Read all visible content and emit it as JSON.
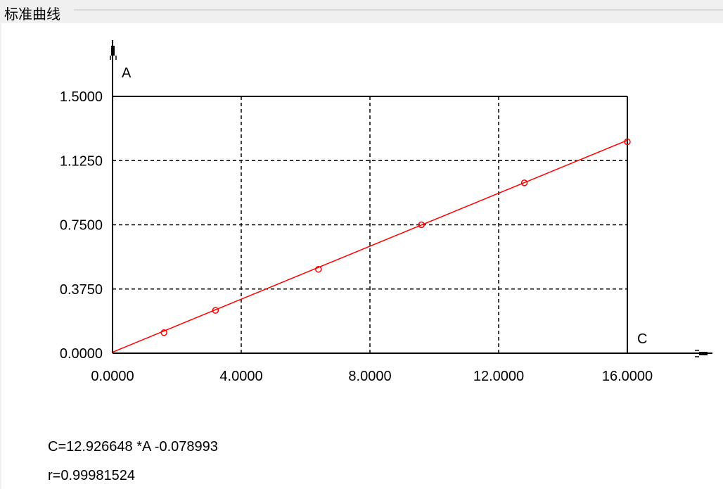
{
  "window": {
    "title": "标准曲线"
  },
  "chart_data": {
    "type": "scatter",
    "title": "",
    "xlabel": "C",
    "ylabel": "A",
    "xlim": [
      0,
      16
    ],
    "ylim": [
      0,
      1.5
    ],
    "xticks": [
      "0.0000",
      "4.0000",
      "8.0000",
      "12.0000",
      "16.0000"
    ],
    "yticks": [
      "0.0000",
      "0.3750",
      "0.7500",
      "1.1250",
      "1.5000"
    ],
    "grid": true,
    "points": [
      {
        "x": 1.6,
        "y": 0.12
      },
      {
        "x": 3.2,
        "y": 0.25
      },
      {
        "x": 6.4,
        "y": 0.49
      },
      {
        "x": 9.6,
        "y": 0.75
      },
      {
        "x": 12.8,
        "y": 0.995
      },
      {
        "x": 16.0,
        "y": 1.235
      }
    ],
    "fit_line": {
      "slope_C_per_A": 12.926648,
      "intercept": -0.078993
    },
    "colors": {
      "series": "#ff0000",
      "axes": "#000000",
      "grid": "#000000"
    }
  },
  "equation": "C=12.926648 *A -0.078993",
  "correlation": "r=0.99981524"
}
